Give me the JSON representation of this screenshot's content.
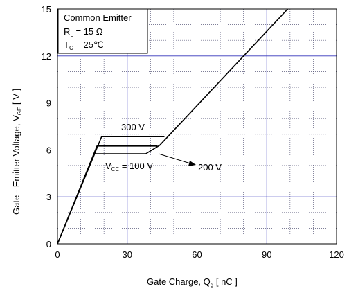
{
  "chart_data": {
    "type": "line",
    "xlim": [
      0,
      120
    ],
    "ylim": [
      0,
      15
    ],
    "x_ticks": [
      "0",
      "30",
      "60",
      "90",
      "120"
    ],
    "y_ticks": [
      "0",
      "3",
      "6",
      "9",
      "12",
      "15"
    ],
    "grid": {
      "major": true,
      "minor_dotted": true
    },
    "xlabel": {
      "main": "Gate Charge,  Q",
      "sub": "g",
      "unit": " [ nC ]"
    },
    "ylabel": {
      "main": "Gate - Emitter Voltage,  V",
      "sub": "GE",
      "unit": " [ V ]"
    },
    "conditions": {
      "line1": "Common Emitter",
      "line2_main": "R",
      "line2_sub": "L",
      "line2_rest": " = 15 Ω",
      "line3_main": "T",
      "line3_sub": "C",
      "line3_rest": " = 25℃"
    },
    "series": [
      {
        "name": "100 V",
        "points": [
          [
            0,
            0
          ],
          [
            16,
            5.75
          ],
          [
            38,
            5.75
          ],
          [
            44,
            6.3
          ],
          [
            99,
            15
          ]
        ]
      },
      {
        "name": "200 V",
        "points": [
          [
            0,
            0
          ],
          [
            17,
            6.25
          ],
          [
            43,
            6.25
          ]
        ]
      },
      {
        "name": "300 V",
        "points": [
          [
            0,
            0
          ],
          [
            19,
            6.85
          ],
          [
            46,
            6.85
          ]
        ]
      }
    ],
    "annotations": {
      "v300": "300 V",
      "v200": "200 V",
      "vcc_main": "V",
      "vcc_sub": "CC",
      "vcc_rest": " = 100 V"
    }
  }
}
